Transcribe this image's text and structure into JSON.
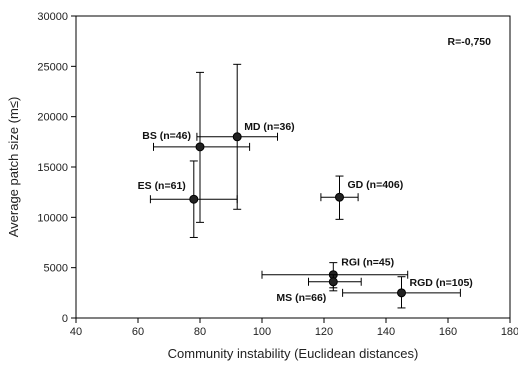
{
  "chart_data": {
    "type": "scatter",
    "xlabel": "Community instability (Euclidean distances)",
    "ylabel": "Average patch size (m≤)",
    "xlim": [
      40,
      180
    ],
    "ylim": [
      0,
      30000
    ],
    "xticks": [
      40,
      60,
      80,
      100,
      120,
      140,
      160,
      180
    ],
    "yticks": [
      0,
      5000,
      10000,
      15000,
      20000,
      25000,
      30000
    ],
    "grid": false,
    "annotation": "R=-0,750",
    "points": [
      {
        "label": "BS (n=46)",
        "x": 80,
        "y": 17000,
        "x_err": [
          65,
          96
        ],
        "y_err": [
          9500,
          24400
        ]
      },
      {
        "label": "MD (n=36)",
        "x": 92,
        "y": 18000,
        "x_err": [
          79,
          105
        ],
        "y_err": [
          10800,
          25200
        ]
      },
      {
        "label": "ES (n=61)",
        "x": 78,
        "y": 11800,
        "x_err": [
          64,
          92
        ],
        "y_err": [
          8000,
          15600
        ]
      },
      {
        "label": "GD (n=406)",
        "x": 125,
        "y": 12000,
        "x_err": [
          119,
          131
        ],
        "y_err": [
          9800,
          14100
        ]
      },
      {
        "label": "RGI (n=45)",
        "x": 123,
        "y": 4300,
        "x_err": [
          100,
          147
        ],
        "y_err": [
          3000,
          5500
        ]
      },
      {
        "label": "MS (n=66)",
        "x": 123,
        "y": 3600,
        "x_err": [
          115,
          132
        ],
        "y_err": [
          2700,
          4300
        ]
      },
      {
        "label": "RGD (n=105)",
        "x": 145,
        "y": 2500,
        "x_err": [
          126,
          164
        ],
        "y_err": [
          1000,
          4100
        ]
      }
    ]
  }
}
